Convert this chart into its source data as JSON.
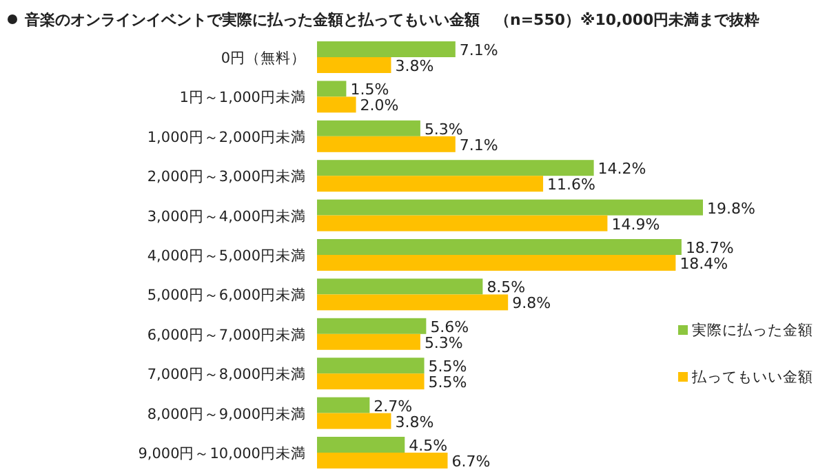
{
  "chart_data": {
    "type": "bar",
    "orientation": "horizontal",
    "title": "音楽のオンラインイベントで実際に払った金額と払ってもいい金額　（n=550）※10,000円未満まで抜粋",
    "categories": [
      "0円（無料）",
      "1円～1,000円未満",
      "1,000円～2,000円未満",
      "2,000円～3,000円未満",
      "3,000円～4,000円未満",
      "4,000円～5,000円未満",
      "5,000円～6,000円未満",
      "6,000円～7,000円未満",
      "7,000円～8,000円未満",
      "8,000円～9,000円未満",
      "9,000円～10,000円未満"
    ],
    "series": [
      {
        "name": "実際に払った金額",
        "color": "#8dc63f",
        "values": [
          7.1,
          1.5,
          5.3,
          14.2,
          19.8,
          18.7,
          8.5,
          5.6,
          5.5,
          2.7,
          4.5
        ],
        "value_labels": [
          "7.1%",
          "1.5%",
          "5.3%",
          "14.2%",
          "19.8%",
          "18.7%",
          "8.5%",
          "5.6%",
          "5.5%",
          "2.7%",
          "4.5%"
        ]
      },
      {
        "name": "払ってもいい金額",
        "color": "#ffc000",
        "values": [
          3.8,
          2.0,
          7.1,
          11.6,
          14.9,
          18.4,
          9.8,
          5.3,
          5.5,
          3.8,
          6.7
        ],
        "value_labels": [
          "3.8%",
          "2.0%",
          "7.1%",
          "11.6%",
          "14.9%",
          "18.4%",
          "9.8%",
          "5.3%",
          "5.5%",
          "3.8%",
          "6.7%"
        ]
      }
    ],
    "legend": "right"
  }
}
